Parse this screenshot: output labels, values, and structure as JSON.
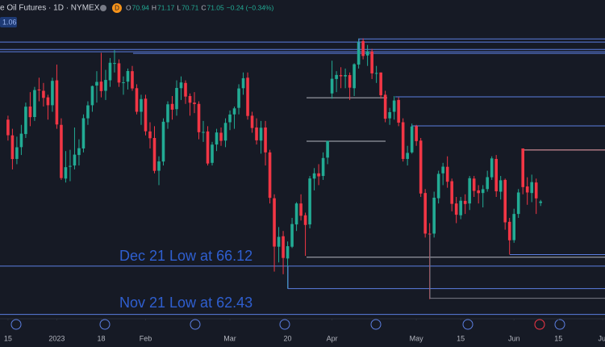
{
  "chart_data": {
    "type": "candlestick",
    "title": "e Oil Futures · 1D · NYMEX",
    "badge": "D",
    "price_tag": "1.06",
    "ohlc_labels": [
      "O",
      "H",
      "L",
      "C"
    ],
    "change_label": "−0.24 (−0.34%)",
    "up_color": "#22ab94",
    "down_color": "#f23645",
    "open": [
      77.3,
      76.1,
      74.3,
      75.2,
      76.2,
      78.3,
      77.5,
      79.6,
      79.5,
      79.0,
      78.4,
      80.3,
      76.9,
      72.8,
      73.7,
      73.8,
      74.6,
      75.1,
      77.4,
      78.4,
      79.9,
      80.2,
      79.5,
      80.3,
      81.6,
      81.6,
      80.1,
      80.2,
      81.0,
      79.7,
      77.9,
      78.9,
      76.4,
      75.9,
      73.4,
      74.1,
      77.1,
      78.5,
      78.1,
      79.7,
      80.1,
      79.1,
      78.6,
      78.5,
      76.3,
      76.4,
      74.0,
      75.4,
      76.3,
      75.7,
      77.1,
      77.7,
      78.2,
      79.7,
      80.5,
      77.6,
      76.7,
      75.7,
      76.7,
      74.8,
      71.3,
      67.6,
      68.4,
      66.7,
      67.6,
      69.3,
      70.9,
      70.0,
      69.3,
      72.8,
      73.2,
      73.0,
      74.4,
      79.3,
      80.4,
      80.7,
      80.6,
      80.7,
      79.7,
      81.5,
      83.3,
      82.2,
      82.5,
      80.8,
      80.9,
      79.2,
      77.4,
      77.9,
      78.8,
      77.1,
      74.3,
      74.8,
      76.8,
      75.7,
      71.7,
      68.6,
      68.6,
      71.3,
      73.2,
      73.7,
      72.6,
      70.9,
      70.0,
      71.1,
      70.9,
      72.8,
      71.9,
      71.7,
      72.0,
      72.9,
      74.3,
      71.8,
      72.7,
      69.5,
      68.1,
      70.1,
      75.1,
      72.2,
      71.7,
      72.5,
      70.94
    ],
    "high": [
      77.6,
      76.6,
      76.0,
      76.9,
      78.6,
      79.4,
      79.8,
      80.5,
      80.1,
      79.2,
      80.5,
      81.5,
      77.4,
      74.9,
      75.0,
      76.7,
      75.8,
      77.7,
      78.7,
      79.9,
      81.0,
      82.4,
      81.1,
      82.0,
      82.6,
      81.9,
      80.6,
      81.2,
      81.4,
      80.0,
      79.2,
      79.2,
      77.1,
      76.8,
      74.5,
      77.4,
      78.7,
      79.1,
      80.3,
      80.6,
      80.3,
      79.3,
      79.4,
      78.7,
      77.2,
      76.8,
      75.6,
      76.6,
      76.7,
      77.4,
      78.0,
      78.3,
      80.0,
      80.9,
      80.9,
      77.9,
      77.4,
      77.2,
      77.2,
      75.0,
      71.6,
      69.1,
      68.8,
      68.0,
      69.8,
      71.0,
      71.6,
      70.2,
      73.0,
      73.6,
      73.9,
      74.8,
      75.7,
      81.8,
      81.0,
      81.3,
      81.2,
      80.9,
      81.6,
      83.5,
      83.5,
      83.0,
      82.7,
      81.4,
      80.9,
      79.5,
      78.2,
      79.1,
      79.0,
      77.4,
      75.3,
      77.0,
      76.9,
      75.9,
      72.0,
      69.4,
      71.8,
      73.4,
      74.0,
      74.5,
      72.8,
      71.4,
      71.4,
      71.6,
      73.0,
      73.0,
      72.3,
      72.3,
      73.4,
      74.5,
      74.6,
      73.0,
      72.8,
      69.8,
      70.5,
      72.0,
      75.1,
      72.9,
      73.1,
      72.8,
      71.17
    ],
    "low": [
      75.7,
      73.5,
      73.9,
      74.6,
      75.9,
      76.8,
      77.2,
      78.7,
      78.3,
      77.3,
      77.9,
      76.6,
      72.7,
      72.5,
      72.6,
      73.5,
      73.8,
      74.8,
      76.9,
      77.9,
      78.6,
      79.0,
      78.8,
      79.8,
      80.9,
      79.8,
      79.2,
      79.6,
      79.5,
      77.7,
      76.9,
      76.1,
      75.1,
      73.2,
      72.3,
      73.8,
      76.6,
      77.3,
      77.6,
      78.8,
      78.5,
      77.6,
      77.8,
      75.8,
      75.6,
      73.8,
      73.8,
      74.9,
      75.3,
      75.2,
      76.5,
      76.6,
      77.7,
      79.2,
      77.3,
      76.3,
      75.4,
      74.7,
      73.8,
      70.9,
      65.7,
      66.4,
      65.5,
      64.4,
      67.5,
      68.8,
      69.6,
      66.9,
      69.0,
      71.9,
      72.3,
      72.7,
      73.9,
      78.9,
      79.4,
      79.7,
      79.7,
      78.8,
      79.1,
      81.2,
      81.9,
      81.4,
      80.4,
      80.1,
      78.9,
      77.1,
      76.9,
      77.3,
      76.8,
      74.1,
      73.8,
      74.7,
      75.3,
      71.4,
      68.3,
      63.6,
      68.3,
      70.9,
      72.3,
      72.1,
      70.3,
      69.4,
      69.7,
      70.1,
      70.4,
      71.4,
      70.9,
      70.6,
      71.8,
      72.7,
      71.4,
      71.2,
      68.9,
      67.0,
      67.9,
      69.8,
      71.6,
      70.8,
      71.0,
      70.1,
      70.71
    ],
    "close": [
      76.11,
      74.29,
      75.19,
      76.23,
      78.29,
      77.49,
      79.56,
      79.53,
      78.96,
      78.4,
      80.26,
      76.93,
      72.84,
      73.67,
      73.77,
      74.63,
      75.12,
      77.41,
      78.39,
      79.86,
      80.18,
      79.48,
      80.33,
      81.64,
      81.62,
      80.13,
      80.15,
      81.01,
      79.68,
      77.9,
      78.87,
      76.41,
      75.88,
      73.39,
      74.11,
      77.14,
      78.47,
      78.06,
      79.72,
      80.14,
      79.06,
      78.59,
      78.49,
      76.34,
      76.36,
      73.95,
      75.39,
      76.32,
      75.68,
      77.05,
      77.69,
      78.16,
      79.68,
      80.46,
      77.58,
      76.66,
      75.72,
      76.68,
      74.8,
      71.33,
      67.61,
      68.35,
      66.74,
      67.64,
      69.33,
      70.9,
      69.96,
      69.26,
      72.81,
      73.2,
      72.97,
      74.37,
      75.67,
      80.42,
      80.71,
      80.61,
      80.7,
      79.74,
      81.53,
      83.26,
      82.16,
      82.52,
      80.83,
      80.86,
      79.16,
      77.37,
      77.87,
      78.76,
      77.07,
      74.3,
      74.76,
      76.78,
      75.66,
      71.66,
      68.6,
      68.56,
      71.34,
      73.16,
      73.71,
      72.56,
      70.87,
      70.04,
      71.11,
      70.86,
      72.83,
      71.86,
      71.69,
      71.99,
      72.91,
      74.34,
      71.83,
      72.67,
      69.46,
      68.09,
      70.1,
      71.74,
      72.15,
      71.74,
      72.53,
      71.29,
      71.05
    ],
    "xlim": [
      -1.8,
      134.5
    ],
    "ylim": [
      62.1,
      85.2
    ],
    "xticks": [
      {
        "value": 0,
        "label": "15"
      },
      {
        "value": 11,
        "label": "2023"
      },
      {
        "value": 21,
        "label": "18"
      },
      {
        "value": 31,
        "label": "Feb"
      },
      {
        "value": 50,
        "label": "Mar"
      },
      {
        "value": 63,
        "label": "20"
      },
      {
        "value": 73,
        "label": "Apr"
      },
      {
        "value": 92,
        "label": "May"
      },
      {
        "value": 102,
        "label": "15"
      },
      {
        "value": 114,
        "label": "Jun"
      },
      {
        "value": 124,
        "label": "15"
      },
      {
        "value": 134,
        "label": "Jul"
      }
    ],
    "levels": [
      {
        "value": 83.46,
        "color": "#5b7ee0"
      },
      {
        "value": 83.22,
        "color": "#5b7ee0"
      },
      {
        "value": 82.66,
        "color": "#5b7ee0"
      },
      {
        "value": 82.48,
        "color": "#5b7ee0"
      },
      {
        "value": 82.36,
        "color": "#5b7ee0"
      },
      {
        "value": 79.04,
        "color": "#5b7ee0"
      },
      {
        "value": 78.97,
        "color": "#b2b5be"
      },
      {
        "value": 76.82,
        "color": "#5b7ee0"
      },
      {
        "value": 75.65,
        "color": "#b2b5be"
      },
      {
        "value": 74.98,
        "color": "#f4a3ad"
      },
      {
        "value": 67.0,
        "color": "#5b7ee0"
      },
      {
        "value": 66.8,
        "color": "#b2b5be"
      },
      {
        "value": 66.12,
        "color": "#5b7ee0"
      },
      {
        "value": 64.4,
        "color": "#5b7ee0"
      },
      {
        "value": 63.66,
        "color": "#787b86"
      },
      {
        "value": 62.43,
        "color": "#5b7ee0"
      }
    ],
    "annotations": [
      "Dec 21 Low at 66.12",
      "Nov 21 Low at 62.43"
    ]
  }
}
